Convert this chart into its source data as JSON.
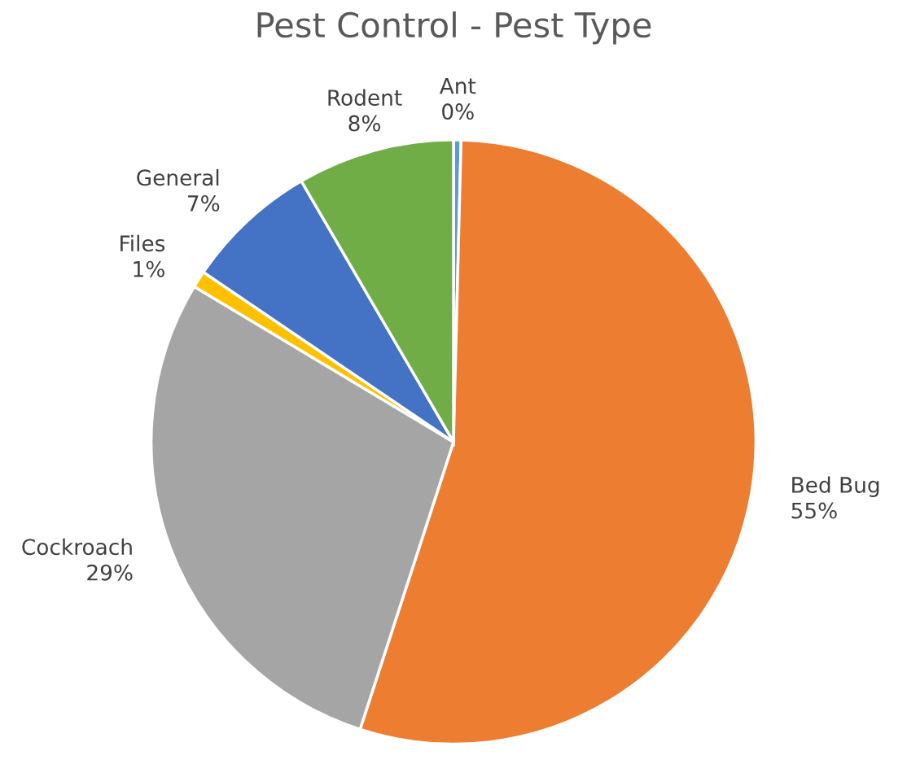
{
  "chart_data": {
    "type": "pie",
    "title": "Pest Control - Pest Type",
    "categories": [
      "Ant",
      "Bed Bug",
      "Cockroach",
      "Files",
      "General",
      "Rodent"
    ],
    "values": [
      0.4,
      54.6,
      28.6,
      0.9,
      7.1,
      8.4
    ],
    "value_labels": [
      "0%",
      "55%",
      "29%",
      "1%",
      "7%",
      "8%"
    ],
    "colors": [
      "#5b9bd5",
      "#ed7d31",
      "#a5a5a5",
      "#ffc000",
      "#4472c4",
      "#70ad47"
    ],
    "legend": false
  }
}
